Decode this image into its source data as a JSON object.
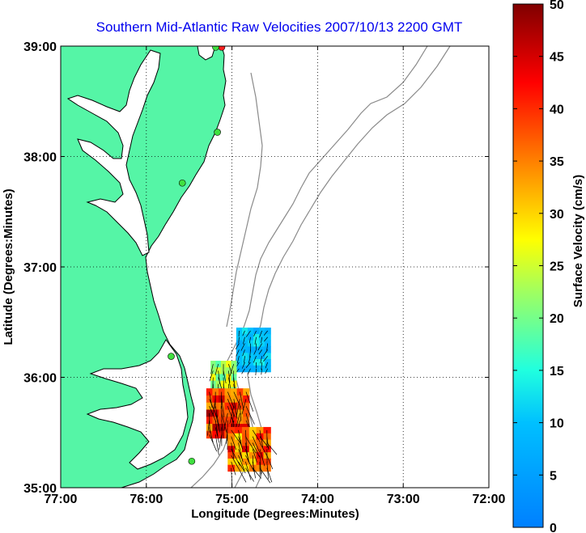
{
  "title": "Southern Mid-Atlantic Raw Velocities 2007/10/13 2200 GMT",
  "map": {
    "xlabel": "Longitude (Degrees:Minutes)",
    "ylabel": "Latitude (Degrees:Minutes)",
    "x_ticks": [
      {
        "lon": -77,
        "label": "77:00"
      },
      {
        "lon": -76,
        "label": "76:00"
      },
      {
        "lon": -75,
        "label": "75:00"
      },
      {
        "lon": -74,
        "label": "74:00"
      },
      {
        "lon": -73,
        "label": "73:00"
      },
      {
        "lon": -72,
        "label": "72:00"
      }
    ],
    "y_ticks": [
      {
        "lat": 39,
        "label": "39:00"
      },
      {
        "lat": 38,
        "label": "38:00"
      },
      {
        "lat": 37,
        "label": "37:00"
      },
      {
        "lat": 36,
        "label": "36:00"
      },
      {
        "lat": 35,
        "label": "35:00"
      }
    ],
    "lon_range": [
      -77,
      -72
    ],
    "lat_range": [
      35,
      39
    ],
    "grid": "dotted",
    "colors": {
      "land": "#55f5a6",
      "water": "#ffffff",
      "bathymetry": "#8a8a8a",
      "coastline": "#000000",
      "grid": "#000000"
    },
    "stations": [
      {
        "lon": -75.12,
        "lat": 38.99,
        "color": "#ff2020"
      },
      {
        "lon": -75.19,
        "lat": 38.99,
        "color": "#40e040"
      },
      {
        "lon": -75.17,
        "lat": 38.22,
        "color": "#40e040"
      },
      {
        "lon": -75.58,
        "lat": 37.76,
        "color": "#40e040"
      },
      {
        "lon": -75.71,
        "lat": 36.19,
        "color": "#40e040"
      },
      {
        "lon": -75.47,
        "lat": 35.24,
        "color": "#40e040"
      }
    ]
  },
  "colorbar": {
    "label": "Surface Velocity (cm/s)",
    "ticks": [
      {
        "value": 0,
        "label": "0"
      },
      {
        "value": 5,
        "label": "5"
      },
      {
        "value": 10,
        "label": "10"
      },
      {
        "value": 15,
        "label": "15"
      },
      {
        "value": 20,
        "label": "20"
      },
      {
        "value": 25,
        "label": "25"
      },
      {
        "value": 30,
        "label": "30"
      },
      {
        "value": 35,
        "label": "35"
      },
      {
        "value": 40,
        "label": "40"
      },
      {
        "value": 45,
        "label": "45"
      },
      {
        "value": 50,
        "label": "50"
      }
    ],
    "range": [
      0,
      50
    ],
    "colormap": "jet"
  },
  "velocity_clusters": [
    {
      "lon": [
        -74.95,
        -74.55
      ],
      "lat": [
        36.05,
        36.45
      ],
      "speed": [
        6,
        14
      ],
      "dir_deg": 250,
      "count": 14
    },
    {
      "lon": [
        -75.25,
        -74.95
      ],
      "lat": [
        35.85,
        36.15
      ],
      "speed": [
        18,
        30
      ],
      "dir_deg": 270,
      "count": 8
    },
    {
      "lon": [
        -75.3,
        -74.8
      ],
      "lat": [
        35.45,
        35.9
      ],
      "speed": [
        32,
        49
      ],
      "dir_deg": 275,
      "count": 16
    },
    {
      "lon": [
        -75.05,
        -74.55
      ],
      "lat": [
        35.15,
        35.55
      ],
      "speed": [
        28,
        46
      ],
      "dir_deg": 290,
      "count": 14
    }
  ]
}
